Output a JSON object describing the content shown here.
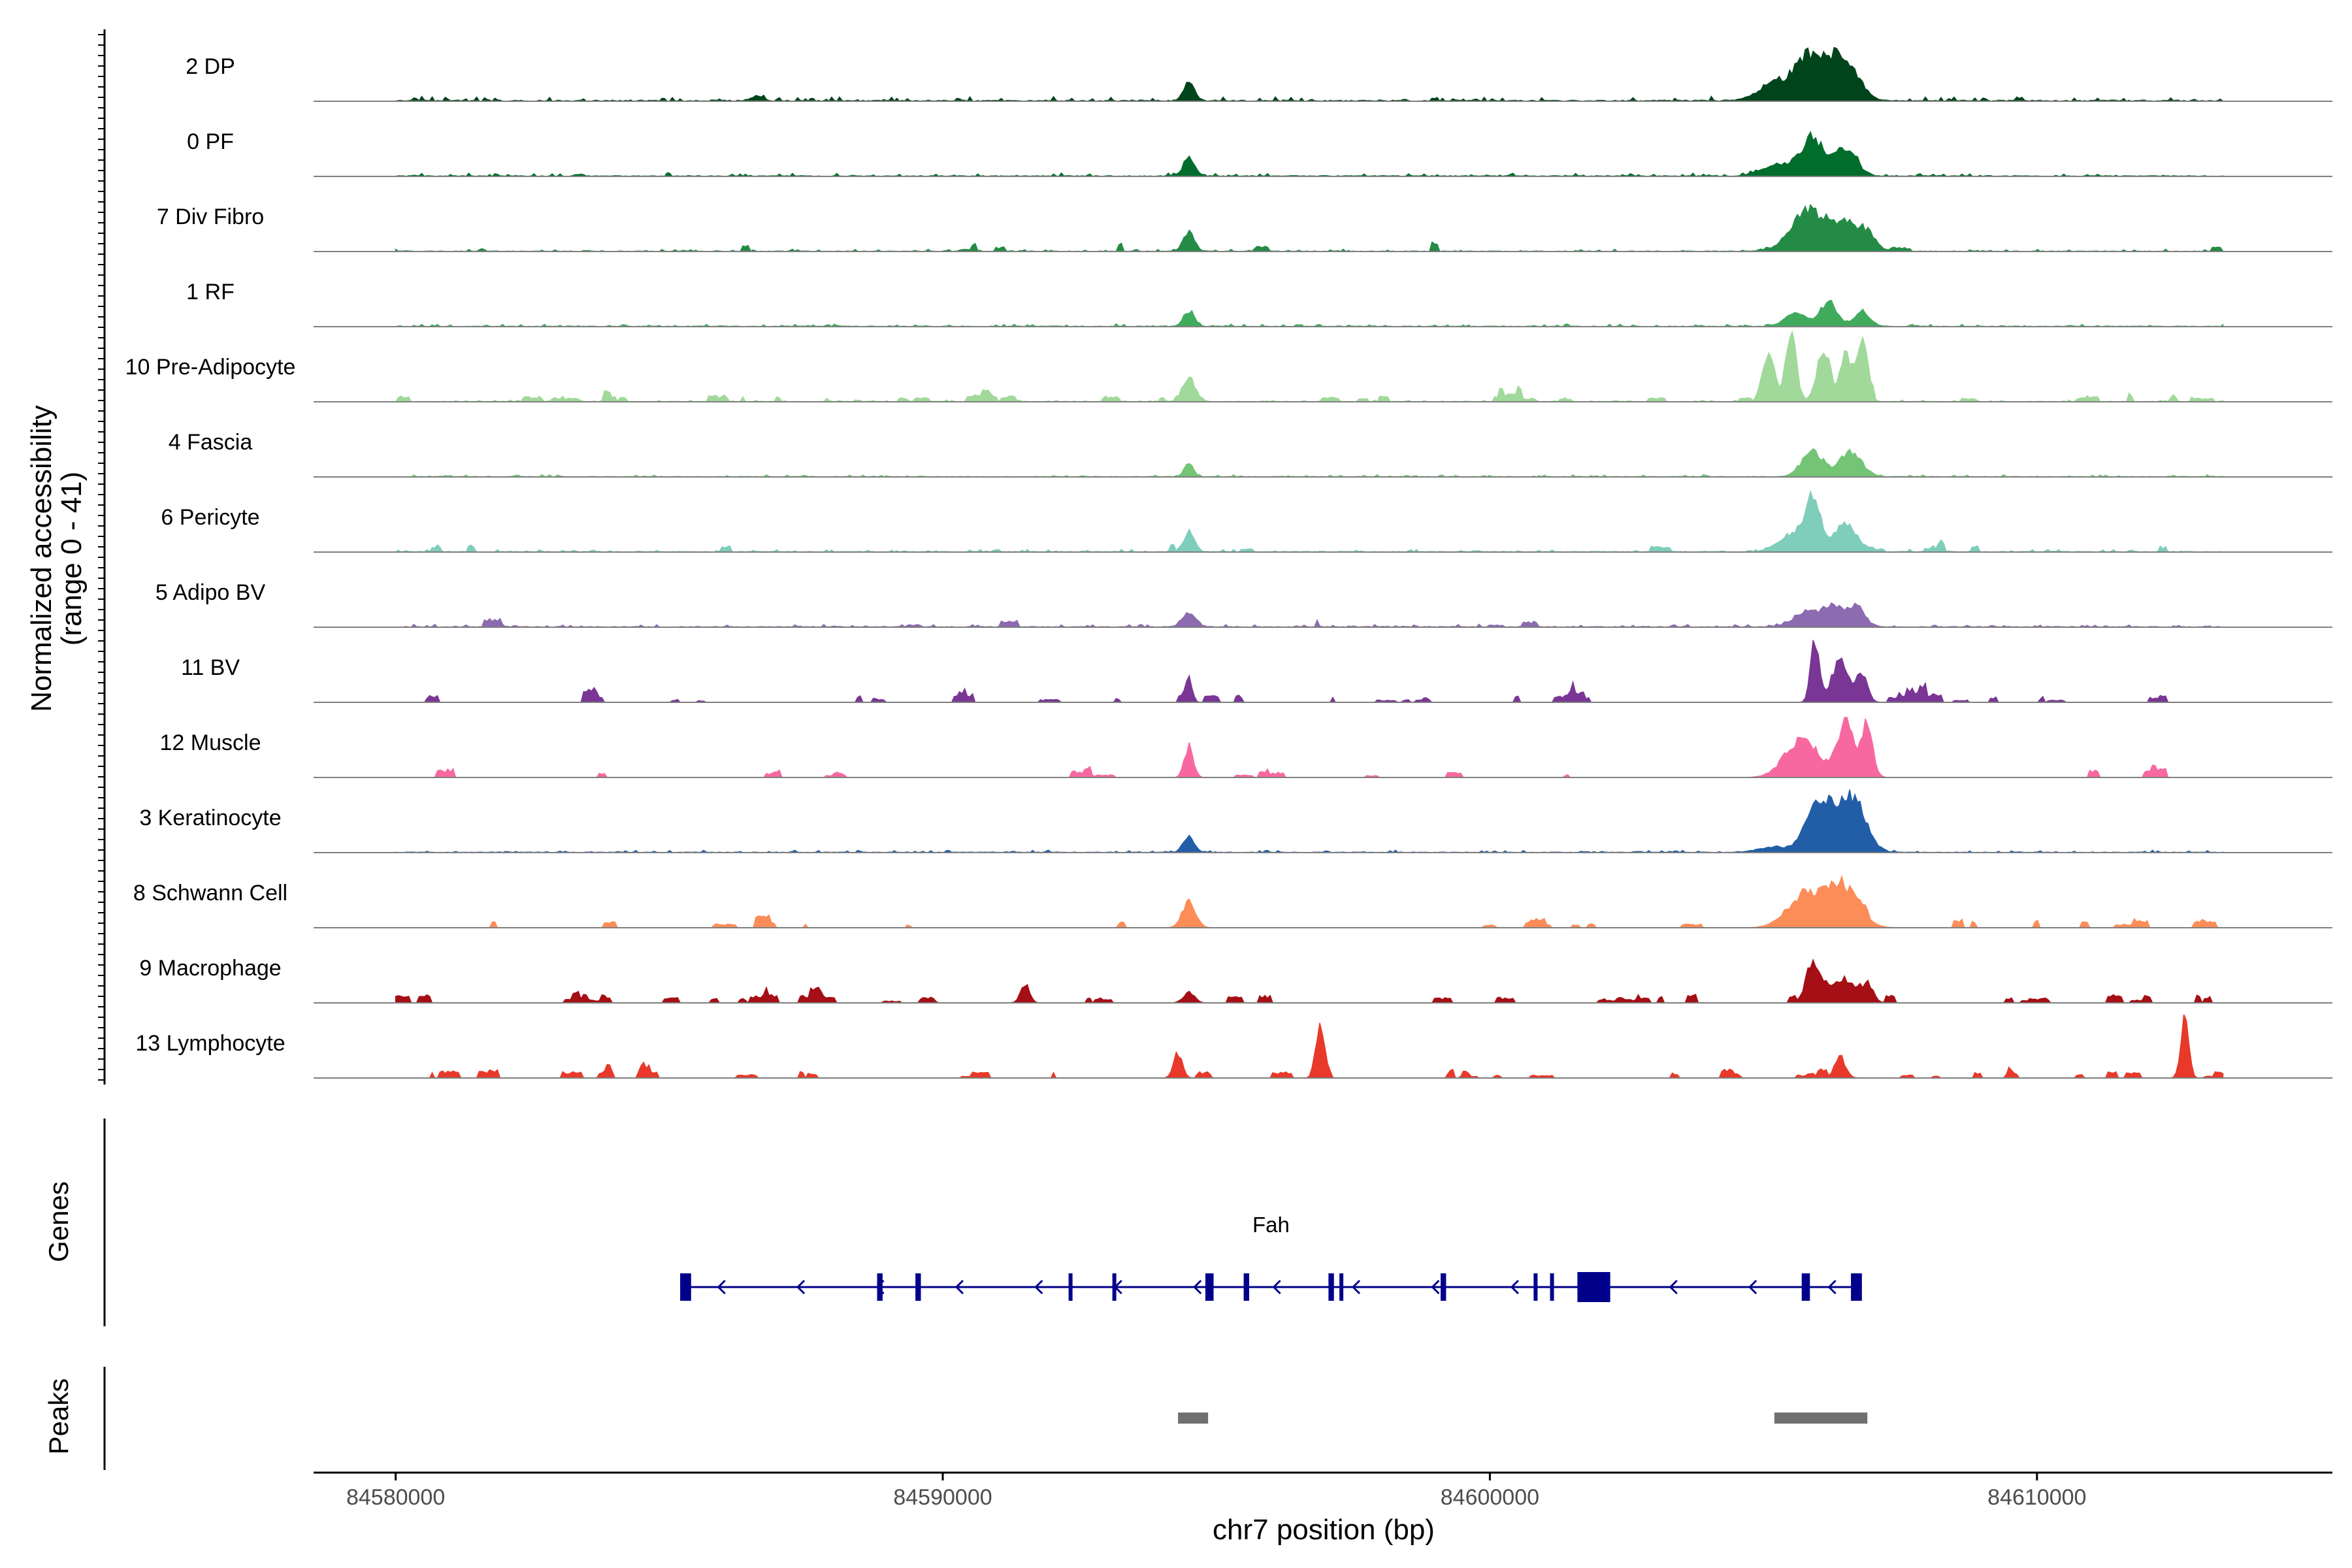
{
  "chart_data": {
    "type": "area",
    "title": "",
    "chrom": "chr7",
    "xlabel": "chr7 position (bp)",
    "ylabel": "Normalized accessibility",
    "ylabel_range": "(range 0 - 41)",
    "xlim": [
      84578500,
      84615400
    ],
    "ylim": [
      0,
      41
    ],
    "x_ticks": [
      84580000,
      84590000,
      84600000,
      84610000
    ],
    "x_tick_labels": [
      "84580000",
      "84590000",
      "84600000",
      "84610000"
    ],
    "tracks": [
      {
        "name": "2 DP",
        "color": "#00441b",
        "peaks": [
          [
            84594500,
            0.1,
            10
          ],
          [
            84605900,
            0.3,
            26
          ],
          [
            84606500,
            0.25,
            22
          ],
          [
            84605200,
            0.3,
            9
          ],
          [
            84586600,
            0.1,
            3
          ]
        ],
        "noise": 2.5,
        "bursts": 0
      },
      {
        "name": "0 PF",
        "color": "#006d2c",
        "peaks": [
          [
            84594500,
            0.1,
            10
          ],
          [
            84605900,
            0.2,
            21
          ],
          [
            84606500,
            0.2,
            16
          ],
          [
            84605300,
            0.3,
            7
          ]
        ],
        "noise": 1.8,
        "bursts": 0
      },
      {
        "name": "7 Div Fibro",
        "color": "#238b45",
        "peaks": [
          [
            84594500,
            0.1,
            11
          ],
          [
            84605800,
            0.3,
            22
          ],
          [
            84606500,
            0.3,
            15
          ],
          [
            84606900,
            0.15,
            6
          ]
        ],
        "noise": 1.2,
        "bursts": 10
      },
      {
        "name": "1 RF",
        "color": "#41ab5d",
        "peaks": [
          [
            84594500,
            0.1,
            9
          ],
          [
            84605600,
            0.2,
            7
          ],
          [
            84606200,
            0.15,
            14
          ],
          [
            84606800,
            0.15,
            8
          ]
        ],
        "noise": 1.4,
        "bursts": 0
      },
      {
        "name": "10 Pre-Adipocyte",
        "color": "#a1d99b",
        "peaks": [
          [
            84594500,
            0.12,
            13
          ],
          [
            84605100,
            0.1,
            28
          ],
          [
            84605500,
            0.1,
            38
          ],
          [
            84606100,
            0.12,
            30
          ],
          [
            84606500,
            0.1,
            26
          ],
          [
            84606800,
            0.1,
            33
          ]
        ],
        "noise": 1.0,
        "bursts": 38
      },
      {
        "name": "4 Fascia",
        "color": "#74c476",
        "peaks": [
          [
            84594500,
            0.08,
            8
          ],
          [
            84605900,
            0.2,
            14
          ],
          [
            84606600,
            0.2,
            14
          ]
        ],
        "noise": 1.2,
        "bursts": 0
      },
      {
        "name": "6 Pericyte",
        "color": "#7fcdbb",
        "peaks": [
          [
            84594500,
            0.1,
            11
          ],
          [
            84605900,
            0.15,
            28
          ],
          [
            84606500,
            0.2,
            16
          ],
          [
            84605500,
            0.25,
            8
          ]
        ],
        "noise": 1.5,
        "bursts": 12
      },
      {
        "name": "5 Adipo BV",
        "color": "#8c6bb1",
        "peaks": [
          [
            84594500,
            0.12,
            8
          ],
          [
            84605800,
            0.25,
            8
          ],
          [
            84606300,
            0.2,
            10
          ],
          [
            84606700,
            0.15,
            11
          ]
        ],
        "noise": 1.6,
        "bursts": 6
      },
      {
        "name": "11 BV",
        "color": "#7a3694",
        "peaks": [
          [
            84594500,
            0.06,
            12
          ],
          [
            84605950,
            0.08,
            36
          ],
          [
            84606400,
            0.15,
            24
          ],
          [
            84606800,
            0.1,
            16
          ]
        ],
        "noise": 0,
        "bursts": 34
      },
      {
        "name": "12 Muscle",
        "color": "#f768a1",
        "peaks": [
          [
            84594500,
            0.08,
            18
          ],
          [
            84605700,
            0.3,
            22
          ],
          [
            84606500,
            0.15,
            32
          ],
          [
            84606900,
            0.1,
            30
          ]
        ],
        "noise": 0,
        "bursts": 18
      },
      {
        "name": "3 Keratinocyte",
        "color": "#225ea8",
        "peaks": [
          [
            84594500,
            0.1,
            9
          ],
          [
            84606000,
            0.22,
            30
          ],
          [
            84606600,
            0.25,
            32
          ],
          [
            84605200,
            0.3,
            3
          ]
        ],
        "noise": 1.3,
        "bursts": 0
      },
      {
        "name": "8 Schwann Cell",
        "color": "#fc8d59",
        "peaks": [
          [
            84594500,
            0.12,
            15
          ],
          [
            84605700,
            0.3,
            16
          ],
          [
            84606400,
            0.3,
            25
          ]
        ],
        "noise": 0,
        "bursts": 24
      },
      {
        "name": "9 Macrophage",
        "color": "#a50f15",
        "peaks": [
          [
            84594500,
            0.1,
            6
          ],
          [
            84591500,
            0.08,
            11
          ],
          [
            84605900,
            0.12,
            23
          ],
          [
            84606400,
            0.25,
            12
          ],
          [
            84606900,
            0.1,
            10
          ]
        ],
        "noise": 0,
        "bursts": 42
      },
      {
        "name": "13 Lymphocyte",
        "color": "#e8392a",
        "peaks": [
          [
            84594300,
            0.08,
            14
          ],
          [
            84596900,
            0.08,
            27
          ],
          [
            84612700,
            0.07,
            36
          ],
          [
            84606400,
            0.1,
            12
          ]
        ],
        "noise": 0,
        "bursts": 40
      }
    ],
    "genes": {
      "label": "Genes",
      "gene_name": "Fah",
      "strand": "-",
      "start": 84585200,
      "end": 84606800,
      "exons": [
        [
          84585200,
          84585400
        ],
        [
          84588800,
          84588900
        ],
        [
          84589500,
          84589600
        ],
        [
          84592300,
          84592350
        ],
        [
          84593100,
          84593150
        ],
        [
          84594800,
          84594950
        ],
        [
          84595500,
          84595600
        ],
        [
          84597050,
          84597150
        ],
        [
          84597250,
          84597300
        ],
        [
          84599100,
          84599200
        ],
        [
          84600800,
          84600850
        ],
        [
          84601100,
          84601150
        ],
        [
          84601600,
          84602200
        ],
        [
          84605700,
          84605850
        ],
        [
          84606600,
          84606800
        ]
      ]
    },
    "peaks_track": {
      "label": "Peaks",
      "regions": [
        [
          84594300,
          84594850
        ],
        [
          84605200,
          84606900
        ]
      ]
    }
  }
}
